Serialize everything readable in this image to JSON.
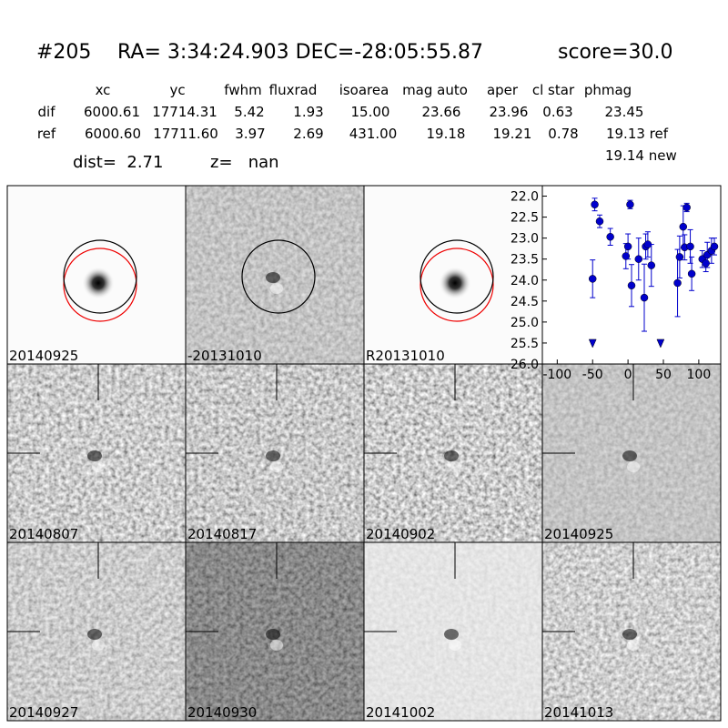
{
  "header": {
    "id": "#205",
    "coords": "RA= 3:34:24.903 DEC=-28:05:55.87",
    "score": "score=30.0",
    "dist": "dist=  2.71",
    "z": "z=   nan",
    "note": "19.14 new"
  },
  "table": {
    "columns": [
      "xc",
      "yc",
      "fwhm",
      "fluxrad",
      "isoarea",
      "mag auto",
      "aper",
      "cl star",
      "phmag"
    ],
    "rows": [
      [
        "dif",
        "6000.61",
        "17714.31",
        "5.42",
        "1.93",
        "15.00",
        "23.66",
        "23.96",
        "0.63",
        "23.45"
      ],
      [
        "ref",
        "6000.60",
        "17711.60",
        "3.97",
        "2.69",
        "431.00",
        "19.18",
        "19.21",
        "0.78",
        "19.13 ref"
      ]
    ]
  },
  "panels": [
    {
      "label": "20140925"
    },
    {
      "label": "-20131010"
    },
    {
      "label": "R20131010"
    },
    {
      "label": "20140807"
    },
    {
      "label": "20140817"
    },
    {
      "label": "20140902"
    },
    {
      "label": "20140925",
      "label_color": "#ff0000"
    },
    {
      "label": "20140927"
    },
    {
      "label": "20140930"
    },
    {
      "label": "20141002"
    },
    {
      "label": "20141013"
    }
  ],
  "chart_data": {
    "type": "scatter",
    "color": "#0000cc",
    "invert_y": true,
    "x": [
      -50,
      -47,
      -40,
      -25,
      -3,
      0,
      3,
      5,
      15,
      23,
      25,
      28,
      33,
      70,
      73,
      78,
      80,
      83,
      88,
      90,
      105,
      110,
      112,
      118,
      122
    ],
    "values": [
      23.97,
      22.2,
      22.6,
      22.97,
      23.43,
      23.2,
      22.2,
      24.13,
      23.5,
      24.42,
      23.2,
      23.15,
      23.65,
      24.07,
      23.45,
      22.73,
      23.22,
      22.27,
      23.2,
      23.85,
      23.5,
      23.6,
      23.4,
      23.3,
      23.2
    ],
    "errors": [
      0.45,
      0.15,
      0.15,
      0.2,
      0.3,
      0.3,
      0.1,
      0.5,
      0.5,
      0.8,
      0.3,
      0.3,
      0.5,
      0.8,
      0.5,
      0.5,
      0.3,
      0.1,
      0.4,
      0.4,
      0.2,
      0.2,
      0.3,
      0.3,
      0.2
    ],
    "limits": {
      "x": [
        -50,
        46
      ],
      "values": [
        25.5,
        25.5
      ]
    },
    "xlim": [
      -121,
      131
    ],
    "ylim": [
      21.75,
      26
    ],
    "xticks": [
      -100,
      -50,
      0,
      50,
      100
    ],
    "yticks": [
      {
        "value": 22,
        "label": "22.0"
      },
      {
        "value": 22.5,
        "label": "22.5"
      },
      {
        "value": 23,
        "label": "23.0"
      },
      {
        "value": 23.5,
        "label": "23.5"
      },
      {
        "value": 24,
        "label": "24.0"
      },
      {
        "value": 24.5,
        "label": "24.5"
      },
      {
        "value": 25,
        "label": "25.0"
      },
      {
        "value": 25.5,
        "label": "25.5"
      },
      {
        "value": 26,
        "label": "26.0"
      }
    ]
  }
}
